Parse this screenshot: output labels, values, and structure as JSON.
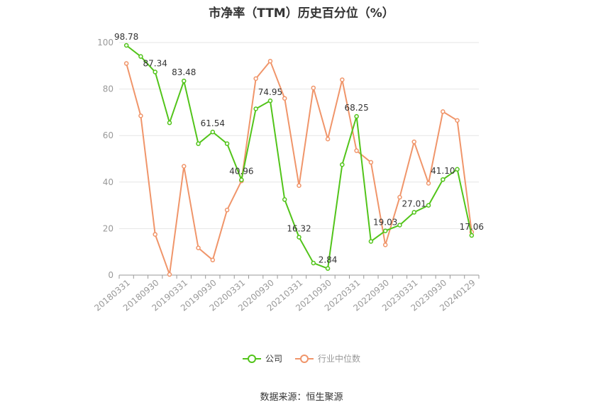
{
  "chart_data": {
    "type": "line",
    "title": "市净率（TTM）历史百分位（%）",
    "source": "数据来源：恒生聚源",
    "ylim": [
      0,
      100
    ],
    "yticks": [
      "0",
      "20",
      "40",
      "60",
      "80",
      "100"
    ],
    "x_labels": [
      "20180331",
      "20180930",
      "20190331",
      "20190930",
      "20200331",
      "20200930",
      "20210331",
      "20210930",
      "20220331",
      "20220930",
      "20230331",
      "20230930",
      "20240129"
    ],
    "grid": true,
    "legend_position": "bottom",
    "series": [
      {
        "name": "公司",
        "color": "#52c41a",
        "values": [
          98.78,
          94,
          87.34,
          65.5,
          83.48,
          56.5,
          61.54,
          56.5,
          40.96,
          71.5,
          74.95,
          32.5,
          16.32,
          5.2,
          2.84,
          47.5,
          68.25,
          14.5,
          19.03,
          21.5,
          27.01,
          30,
          41.1,
          45.5,
          17.06
        ],
        "labels": {
          "0": "98.78",
          "2": "87.34",
          "4": "83.48",
          "6": "61.54",
          "8": "40.96",
          "10": "74.95",
          "12": "16.32",
          "14": "2.84",
          "16": "68.25",
          "18": "19.03",
          "20": "27.01",
          "22": "41.10",
          "24": "17.06"
        }
      },
      {
        "name": "行业中位数",
        "color": "#f0956a",
        "values": [
          91,
          68.5,
          17.5,
          0.3,
          46.8,
          11.7,
          6.5,
          28,
          40.5,
          84.5,
          92,
          76,
          38.5,
          80.5,
          58.5,
          84,
          53.5,
          48.5,
          13,
          33.5,
          57.3,
          39.5,
          70.3,
          66.5,
          18.5
        ]
      }
    ]
  }
}
